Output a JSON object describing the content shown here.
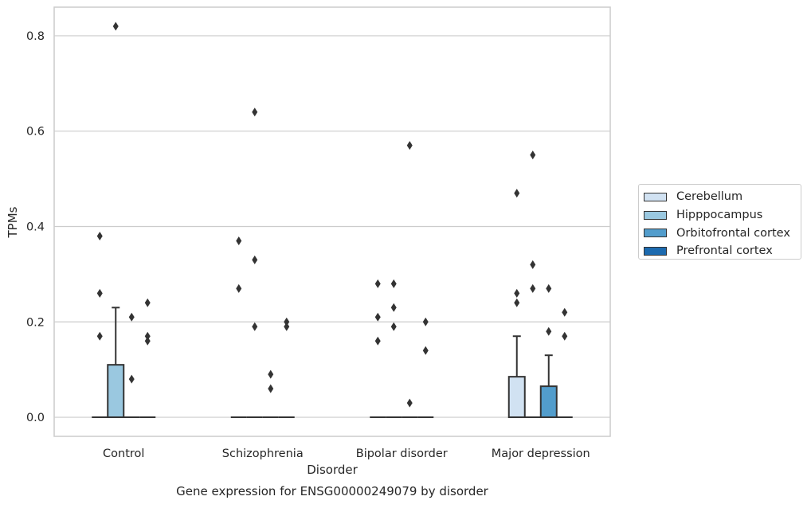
{
  "chart_data": {
    "type": "box",
    "title": "Gene expression for ENSG00000249079 by disorder",
    "xlabel": "Disorder",
    "ylabel": "TPMs",
    "ylim": [
      -0.04,
      0.86
    ],
    "yticks": [
      0.0,
      0.2,
      0.4,
      0.6,
      0.8
    ],
    "ytick_labels": [
      "0.0",
      "0.2",
      "0.4",
      "0.6",
      "0.8"
    ],
    "grid": "horizontal",
    "legend_position": "right",
    "categories": [
      "Control",
      "Schizophrenia",
      "Bipolar disorder",
      "Major depression"
    ],
    "series": [
      {
        "name": "Cerebellum",
        "color": "#d1e2f2",
        "boxes": [
          {
            "q1": 0,
            "median": 0,
            "q3": 0,
            "whisker_low": 0,
            "whisker_high": 0,
            "outliers": [
              0.38,
              0.26,
              0.17
            ]
          },
          {
            "q1": 0,
            "median": 0,
            "q3": 0,
            "whisker_low": 0,
            "whisker_high": 0,
            "outliers": [
              0.37,
              0.27
            ]
          },
          {
            "q1": 0,
            "median": 0,
            "q3": 0,
            "whisker_low": 0,
            "whisker_high": 0,
            "outliers": [
              0.28,
              0.21,
              0.16
            ]
          },
          {
            "q1": 0,
            "median": 0,
            "q3": 0.085,
            "whisker_low": 0,
            "whisker_high": 0.17,
            "outliers": [
              0.47,
              0.26,
              0.24
            ]
          }
        ]
      },
      {
        "name": "Hipppocampus",
        "color": "#9ac8e0",
        "boxes": [
          {
            "q1": 0,
            "median": 0,
            "q3": 0.11,
            "whisker_low": 0,
            "whisker_high": 0.23,
            "outliers": [
              0.82
            ]
          },
          {
            "q1": 0,
            "median": 0,
            "q3": 0,
            "whisker_low": 0,
            "whisker_high": 0,
            "outliers": [
              0.64,
              0.33,
              0.19
            ]
          },
          {
            "q1": 0,
            "median": 0,
            "q3": 0,
            "whisker_low": 0,
            "whisker_high": 0,
            "outliers": [
              0.28,
              0.23,
              0.19
            ]
          },
          {
            "q1": 0,
            "median": 0,
            "q3": 0,
            "whisker_low": 0,
            "whisker_high": 0,
            "outliers": [
              0.55,
              0.32,
              0.27
            ]
          }
        ]
      },
      {
        "name": "Orbitofrontal cortex",
        "color": "#529dcc",
        "boxes": [
          {
            "q1": 0,
            "median": 0,
            "q3": 0,
            "whisker_low": 0,
            "whisker_high": 0,
            "outliers": [
              0.21,
              0.08
            ]
          },
          {
            "q1": 0,
            "median": 0,
            "q3": 0,
            "whisker_low": 0,
            "whisker_high": 0,
            "outliers": [
              0.09,
              0.06
            ]
          },
          {
            "q1": 0,
            "median": 0,
            "q3": 0,
            "whisker_low": 0,
            "whisker_high": 0,
            "outliers": [
              0.57,
              0.03
            ]
          },
          {
            "q1": 0,
            "median": 0,
            "q3": 0.065,
            "whisker_low": 0,
            "whisker_high": 0.13,
            "outliers": [
              0.27,
              0.18
            ]
          }
        ]
      },
      {
        "name": "Prefrontal cortex",
        "color": "#1c6aaf",
        "boxes": [
          {
            "q1": 0,
            "median": 0,
            "q3": 0,
            "whisker_low": 0,
            "whisker_high": 0,
            "outliers": [
              0.24,
              0.17,
              0.16
            ]
          },
          {
            "q1": 0,
            "median": 0,
            "q3": 0,
            "whisker_low": 0,
            "whisker_high": 0,
            "outliers": [
              0.2,
              0.19
            ]
          },
          {
            "q1": 0,
            "median": 0,
            "q3": 0,
            "whisker_low": 0,
            "whisker_high": 0,
            "outliers": [
              0.2,
              0.14
            ]
          },
          {
            "q1": 0,
            "median": 0,
            "q3": 0,
            "whisker_low": 0,
            "whisker_high": 0,
            "outliers": [
              0.22,
              0.17
            ]
          }
        ]
      }
    ]
  }
}
